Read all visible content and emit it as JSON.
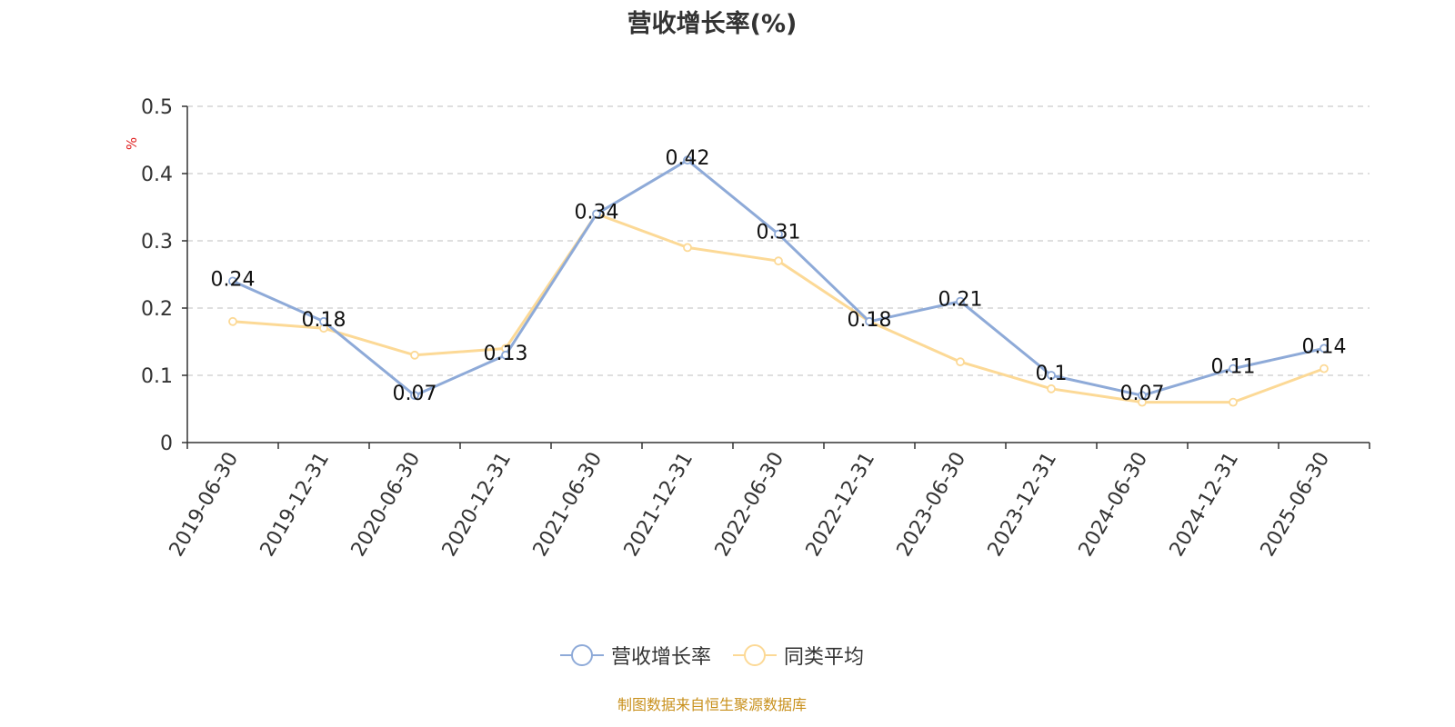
{
  "title": "营收增长率(%)",
  "source_note": "制图数据来自恒生聚源数据库",
  "colors": {
    "series1": "#8eaad8",
    "series2": "#fcd996",
    "axis": "#333333",
    "grid": "#cccccc",
    "ylabel": "#e02020"
  },
  "chart_data": {
    "type": "line",
    "title": "营收增长率(%)",
    "ylabel": "%",
    "xlabel": "",
    "ylim": [
      0,
      0.5
    ],
    "yticks": [
      "0",
      "0.1",
      "0.2",
      "0.3",
      "0.4",
      "0.5"
    ],
    "yticks_values": [
      0,
      0.1,
      0.2,
      0.3,
      0.4,
      0.5
    ],
    "grid": true,
    "legend_position": "bottom-center",
    "categories": [
      "2019-06-30",
      "2019-12-31",
      "2020-06-30",
      "2020-12-31",
      "2021-06-30",
      "2021-12-31",
      "2022-06-30",
      "2022-12-31",
      "2023-06-30",
      "2023-12-31",
      "2024-06-30",
      "2024-12-31",
      "2025-06-30"
    ],
    "series": [
      {
        "name": "营收增长率",
        "values": [
          0.24,
          0.18,
          0.07,
          0.13,
          0.34,
          0.42,
          0.31,
          0.18,
          0.21,
          0.1,
          0.07,
          0.11,
          0.14
        ],
        "labels": [
          "0.24",
          "0.18",
          "0.07",
          "0.13",
          "0.34",
          "0.42",
          "0.31",
          "0.18",
          "0.21",
          "0.1",
          "0.07",
          "0.11",
          "0.14"
        ]
      },
      {
        "name": "同类平均",
        "values": [
          0.18,
          0.17,
          0.13,
          0.14,
          0.34,
          0.29,
          0.27,
          0.18,
          0.12,
          0.08,
          0.06,
          0.06,
          0.11
        ]
      }
    ]
  }
}
